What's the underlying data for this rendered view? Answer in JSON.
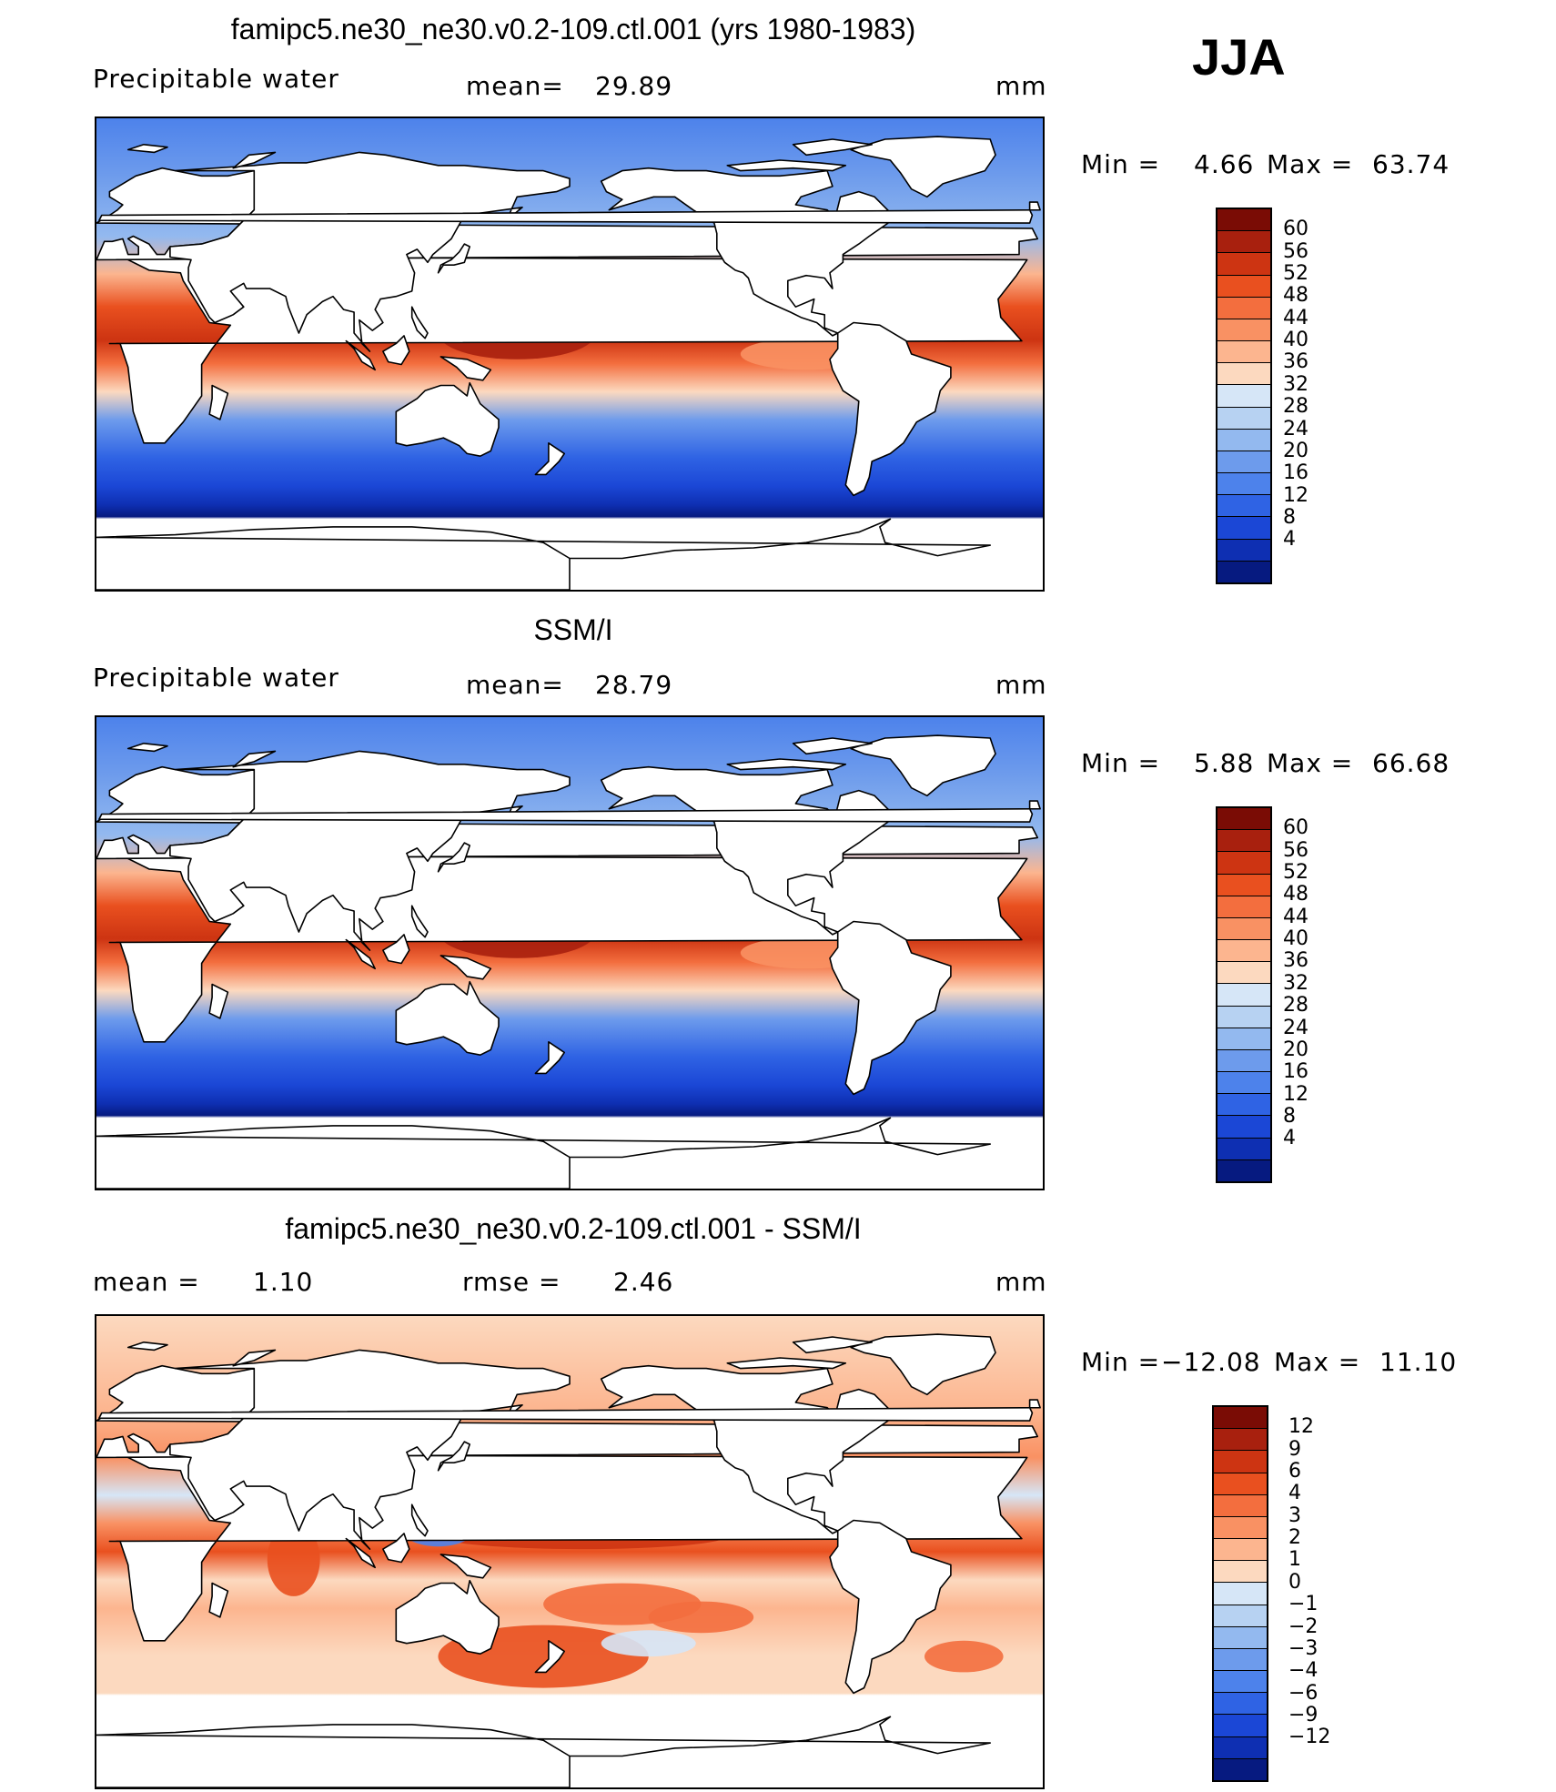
{
  "season": "JJA",
  "panels": [
    {
      "title": "famipc5.ne30_ne30.v0.2-109.ctl.001 (yrs 1980-1983)",
      "left_label": "Precipitable water",
      "mid_label": "mean=",
      "mid_value": "29.89",
      "units": "mm",
      "min_label": "Min =",
      "min_value": "4.66",
      "max_label": "Max =",
      "max_value": "63.74",
      "levels": [
        "60",
        "56",
        "52",
        "48",
        "44",
        "40",
        "36",
        "32",
        "28",
        "24",
        "20",
        "16",
        "12",
        "8",
        "4"
      ],
      "colors": [
        "#7a0c05",
        "#a8200e",
        "#cd3412",
        "#e9501f",
        "#f36e3e",
        "#f99163",
        "#fcb58f",
        "#fcd9bf",
        "#d6e6f7",
        "#b7d2f2",
        "#93b9ef",
        "#6d9bec",
        "#4d82eb",
        "#2f63e4",
        "#1b47d6",
        "#0e2fb2",
        "#061a80"
      ]
    },
    {
      "title": "SSM/I",
      "left_label": "Precipitable water",
      "mid_label": "mean=",
      "mid_value": "28.79",
      "units": "mm",
      "min_label": "Min =",
      "min_value": "5.88",
      "max_label": "Max =",
      "max_value": "66.68",
      "levels": [
        "60",
        "56",
        "52",
        "48",
        "44",
        "40",
        "36",
        "32",
        "28",
        "24",
        "20",
        "16",
        "12",
        "8",
        "4"
      ],
      "colors": [
        "#7a0c05",
        "#a8200e",
        "#cd3412",
        "#e9501f",
        "#f36e3e",
        "#f99163",
        "#fcb58f",
        "#fcd9bf",
        "#d6e6f7",
        "#b7d2f2",
        "#93b9ef",
        "#6d9bec",
        "#4d82eb",
        "#2f63e4",
        "#1b47d6",
        "#0e2fb2",
        "#061a80"
      ]
    },
    {
      "title": "famipc5.ne30_ne30.v0.2-109.ctl.001 - SSM/I",
      "left_label": "mean =",
      "left_value": "1.10",
      "mid_label": "rmse =",
      "mid_value": "2.46",
      "units": "mm",
      "min_label": "Min =",
      "min_value": "−12.08",
      "max_label": "Max =",
      "max_value": "11.10",
      "levels": [
        "12",
        "9",
        "6",
        "4",
        "3",
        "2",
        "1",
        "0",
        "−1",
        "−2",
        "−3",
        "−4",
        "−6",
        "−9",
        "−12"
      ],
      "colors": [
        "#7a0c05",
        "#a8200e",
        "#cd3412",
        "#e9501f",
        "#f36e3e",
        "#f99163",
        "#fcb58f",
        "#fcd9bf",
        "#d6e6f7",
        "#b7d2f2",
        "#93b9ef",
        "#6d9bec",
        "#4d82eb",
        "#2f63e4",
        "#1b47d6",
        "#0e2fb2",
        "#061a80"
      ]
    }
  ]
}
